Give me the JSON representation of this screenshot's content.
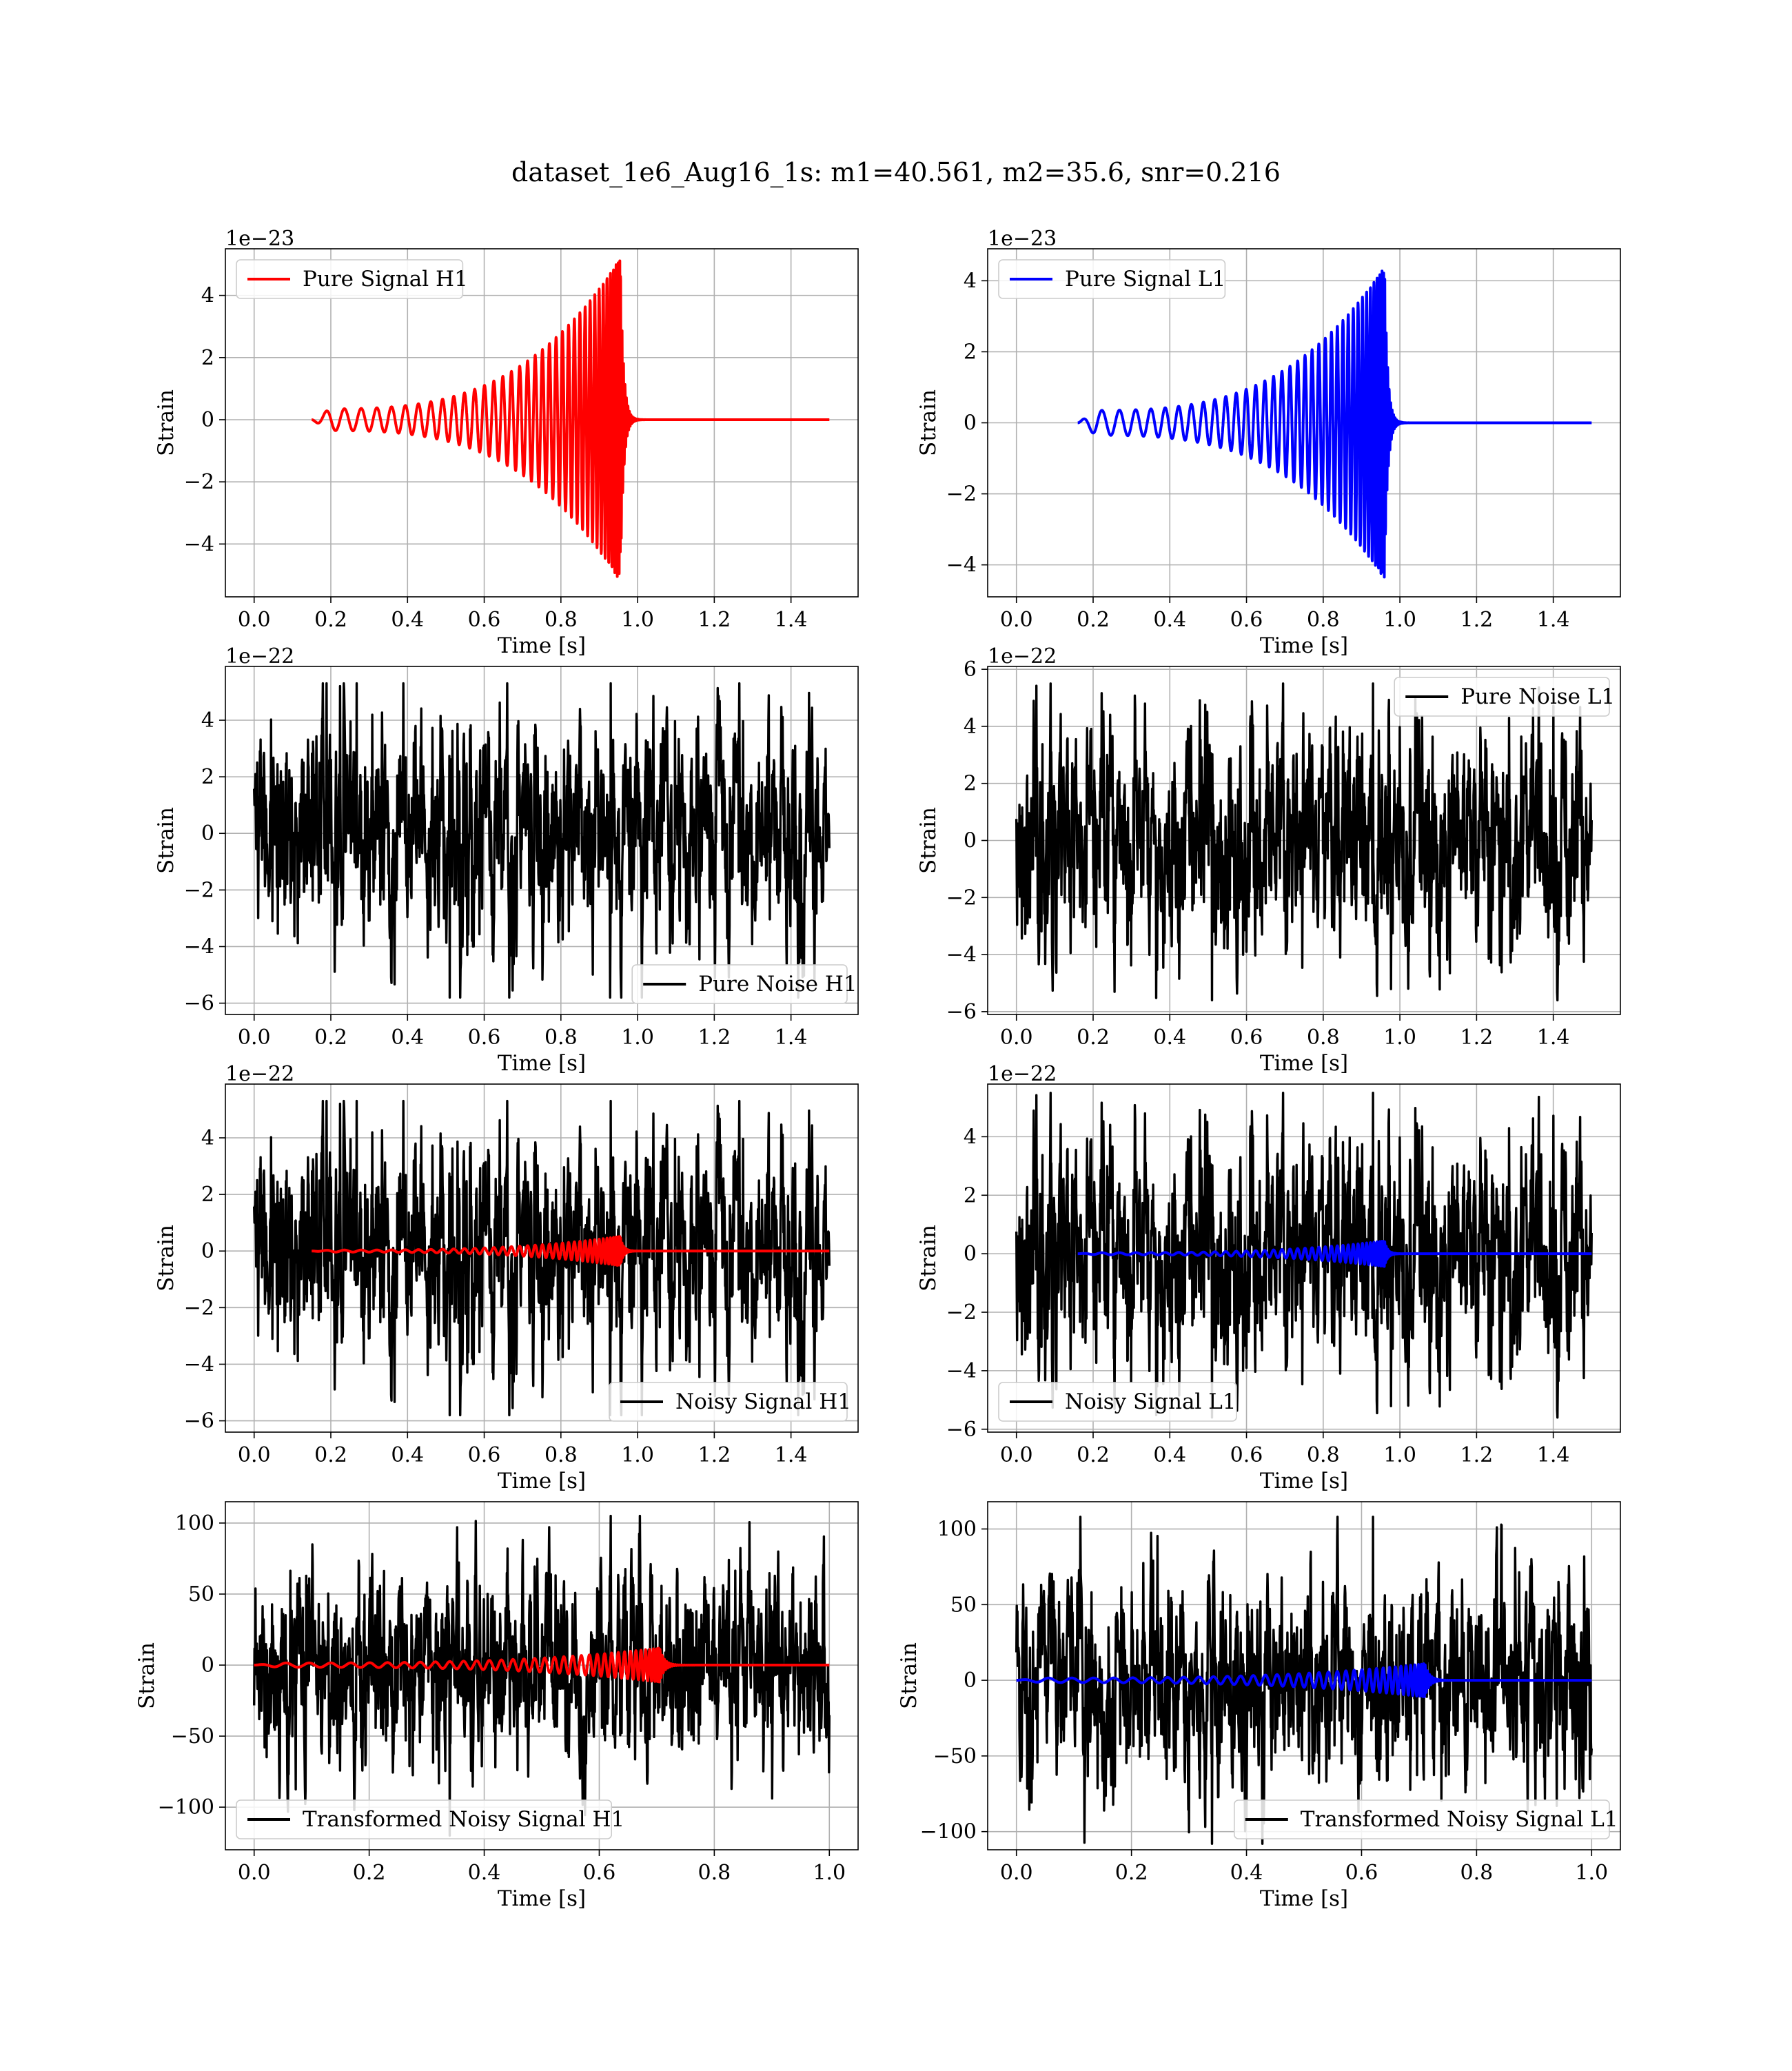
{
  "title": "dataset_1e6_Aug16_1s: m1=40.561, m2=35.6, snr=0.216",
  "colors": {
    "h1_signal": "#ff0000",
    "l1_signal": "#0000ff",
    "noise": "#000000",
    "grid": "#b0b0b0"
  },
  "chart_data": [
    {
      "type": "line",
      "panel": "Pure Signal H1",
      "xlabel": "Time [s]",
      "ylabel": "Strain",
      "offset_text": "1e−23",
      "xlim": [
        -0.075,
        1.575
      ],
      "ylim": [
        -5.7,
        5.5
      ],
      "xticks": [
        0.0,
        0.2,
        0.4,
        0.6,
        0.8,
        1.0,
        1.2,
        1.4
      ],
      "xtick_labels": [
        "0.0",
        "0.2",
        "0.4",
        "0.6",
        "0.8",
        "1.0",
        "1.2",
        "1.4"
      ],
      "yticks": [
        -4,
        -2,
        0,
        2,
        4
      ],
      "ytick_labels": [
        "−4",
        "−2",
        "0",
        "2",
        "4"
      ],
      "legend": {
        "position": "upper-left"
      },
      "series": [
        {
          "name": "Pure Signal H1",
          "color": "#ff0000",
          "kind": "chirp",
          "start": 0.15,
          "merger": 0.955,
          "end": 1.5,
          "peak": 5.2,
          "base_amp": 0.35,
          "cycles": 24,
          "phase": 3.1416
        }
      ]
    },
    {
      "type": "line",
      "panel": "Pure Signal L1",
      "xlabel": "Time [s]",
      "ylabel": "Strain",
      "offset_text": "1e−23",
      "xlim": [
        -0.075,
        1.575
      ],
      "ylim": [
        -4.9,
        4.9
      ],
      "xticks": [
        0.0,
        0.2,
        0.4,
        0.6,
        0.8,
        1.0,
        1.2,
        1.4
      ],
      "xtick_labels": [
        "0.0",
        "0.2",
        "0.4",
        "0.6",
        "0.8",
        "1.0",
        "1.2",
        "1.4"
      ],
      "yticks": [
        -4,
        -2,
        0,
        2,
        4
      ],
      "ytick_labels": [
        "−4",
        "−2",
        "0",
        "2",
        "4"
      ],
      "legend": {
        "position": "upper-left"
      },
      "series": [
        {
          "name": "Pure Signal L1",
          "color": "#0000ff",
          "kind": "chirp",
          "start": 0.16,
          "merger": 0.96,
          "end": 1.5,
          "peak": 4.4,
          "base_amp": 0.35,
          "cycles": 24,
          "phase": 0
        }
      ]
    },
    {
      "type": "line",
      "panel": "Pure Noise H1",
      "xlabel": "Time [s]",
      "ylabel": "Strain",
      "offset_text": "1e−22",
      "xlim": [
        -0.075,
        1.575
      ],
      "ylim": [
        -6.4,
        5.9
      ],
      "xticks": [
        0.0,
        0.2,
        0.4,
        0.6,
        0.8,
        1.0,
        1.2,
        1.4
      ],
      "xtick_labels": [
        "0.0",
        "0.2",
        "0.4",
        "0.6",
        "0.8",
        "1.0",
        "1.2",
        "1.4"
      ],
      "yticks": [
        -6,
        -4,
        -2,
        0,
        2,
        4
      ],
      "ytick_labels": [
        "−6",
        "−4",
        "−2",
        "0",
        "2",
        "4"
      ],
      "legend": {
        "position": "lower-right"
      },
      "series": [
        {
          "name": "Pure Noise H1",
          "color": "#000000",
          "kind": "noise",
          "start": 0.0,
          "end": 1.5,
          "amp": 1.9,
          "max": 5.3,
          "min": -5.8,
          "seed": 11
        }
      ]
    },
    {
      "type": "line",
      "panel": "Pure Noise L1",
      "xlabel": "Time [s]",
      "ylabel": "Strain",
      "offset_text": "1e−22",
      "xlim": [
        -0.075,
        1.575
      ],
      "ylim": [
        -6.1,
        6.1
      ],
      "xticks": [
        0.0,
        0.2,
        0.4,
        0.6,
        0.8,
        1.0,
        1.2,
        1.4
      ],
      "xtick_labels": [
        "0.0",
        "0.2",
        "0.4",
        "0.6",
        "0.8",
        "1.0",
        "1.2",
        "1.4"
      ],
      "yticks": [
        -6,
        -4,
        -2,
        0,
        2,
        4,
        6
      ],
      "ytick_labels": [
        "−6",
        "−4",
        "−2",
        "0",
        "2",
        "4",
        "6"
      ],
      "legend": {
        "position": "upper-right"
      },
      "series": [
        {
          "name": "Pure Noise L1",
          "color": "#000000",
          "kind": "noise",
          "start": 0.0,
          "end": 1.5,
          "amp": 1.9,
          "max": 5.5,
          "min": -5.6,
          "seed": 23
        }
      ]
    },
    {
      "type": "line",
      "panel": "Noisy Signal H1",
      "xlabel": "Time [s]",
      "ylabel": "Strain",
      "offset_text": "1e−22",
      "xlim": [
        -0.075,
        1.575
      ],
      "ylim": [
        -6.4,
        5.9
      ],
      "xticks": [
        0.0,
        0.2,
        0.4,
        0.6,
        0.8,
        1.0,
        1.2,
        1.4
      ],
      "xtick_labels": [
        "0.0",
        "0.2",
        "0.4",
        "0.6",
        "0.8",
        "1.0",
        "1.2",
        "1.4"
      ],
      "yticks": [
        -6,
        -4,
        -2,
        0,
        2,
        4
      ],
      "ytick_labels": [
        "−6",
        "−4",
        "−2",
        "0",
        "2",
        "4"
      ],
      "legend": {
        "position": "lower-right"
      },
      "series": [
        {
          "name": "Noisy Signal H1",
          "color": "#000000",
          "kind": "noise",
          "start": 0.0,
          "end": 1.5,
          "amp": 1.9,
          "max": 5.3,
          "min": -5.8,
          "seed": 11
        },
        {
          "color": "#ff0000",
          "kind": "chirp",
          "start": 0.15,
          "merger": 0.955,
          "end": 1.5,
          "peak": 0.52,
          "base_amp": 0.035,
          "cycles": 24,
          "phase": 3.1416
        }
      ]
    },
    {
      "type": "line",
      "panel": "Noisy Signal L1",
      "xlabel": "Time [s]",
      "ylabel": "Strain",
      "offset_text": "1e−22",
      "xlim": [
        -0.075,
        1.575
      ],
      "ylim": [
        -6.1,
        5.8
      ],
      "xticks": [
        0.0,
        0.2,
        0.4,
        0.6,
        0.8,
        1.0,
        1.2,
        1.4
      ],
      "xtick_labels": [
        "0.0",
        "0.2",
        "0.4",
        "0.6",
        "0.8",
        "1.0",
        "1.2",
        "1.4"
      ],
      "yticks": [
        -6,
        -4,
        -2,
        0,
        2,
        4
      ],
      "ytick_labels": [
        "−6",
        "−4",
        "−2",
        "0",
        "2",
        "4"
      ],
      "legend": {
        "position": "lower-left"
      },
      "series": [
        {
          "name": "Noisy Signal L1",
          "color": "#000000",
          "kind": "noise",
          "start": 0.0,
          "end": 1.5,
          "amp": 1.9,
          "max": 5.5,
          "min": -5.6,
          "seed": 23
        },
        {
          "color": "#0000ff",
          "kind": "chirp",
          "start": 0.16,
          "merger": 0.96,
          "end": 1.5,
          "peak": 0.44,
          "base_amp": 0.035,
          "cycles": 24,
          "phase": 0
        }
      ]
    },
    {
      "type": "line",
      "panel": "Transformed Noisy Signal H1",
      "xlabel": "Time [s]",
      "ylabel": "Strain",
      "offset_text": "",
      "xlim": [
        -0.05,
        1.05
      ],
      "ylim": [
        -130,
        115
      ],
      "xticks": [
        0.0,
        0.2,
        0.4,
        0.6,
        0.8,
        1.0
      ],
      "xtick_labels": [
        "0.0",
        "0.2",
        "0.4",
        "0.6",
        "0.8",
        "1.0"
      ],
      "yticks": [
        -100,
        -50,
        0,
        50,
        100
      ],
      "ytick_labels": [
        "−100",
        "−50",
        "0",
        "50",
        "100"
      ],
      "legend": {
        "position": "lower-left"
      },
      "series": [
        {
          "name": "Transformed Noisy Signal H1",
          "color": "#000000",
          "kind": "noise",
          "start": 0.0,
          "end": 1.0,
          "amp": 32,
          "max": 105,
          "min": -120,
          "seed": 37
        },
        {
          "color": "#ff0000",
          "kind": "chirp",
          "start": 0.0,
          "merger": 0.705,
          "end": 1.0,
          "peak": 12,
          "base_amp": 1.5,
          "cycles": 24,
          "phase": 0
        }
      ]
    },
    {
      "type": "line",
      "panel": "Transformed Noisy Signal L1",
      "xlabel": "Time [s]",
      "ylabel": "Strain",
      "offset_text": "",
      "xlim": [
        -0.05,
        1.05
      ],
      "ylim": [
        -112,
        118
      ],
      "xticks": [
        0.0,
        0.2,
        0.4,
        0.6,
        0.8,
        1.0
      ],
      "xtick_labels": [
        "0.0",
        "0.2",
        "0.4",
        "0.6",
        "0.8",
        "1.0"
      ],
      "yticks": [
        -100,
        -50,
        0,
        50,
        100
      ],
      "ytick_labels": [
        "−100",
        "−50",
        "0",
        "50",
        "100"
      ],
      "legend": {
        "position": "lower-right"
      },
      "series": [
        {
          "name": "Transformed Noisy Signal L1",
          "color": "#000000",
          "kind": "noise",
          "start": 0.0,
          "end": 1.0,
          "amp": 32,
          "max": 108,
          "min": -108,
          "seed": 53
        },
        {
          "color": "#0000ff",
          "kind": "chirp",
          "start": 0.0,
          "merger": 0.71,
          "end": 1.0,
          "peak": 11,
          "base_amp": 1.5,
          "cycles": 24,
          "phase": 0
        }
      ]
    }
  ]
}
